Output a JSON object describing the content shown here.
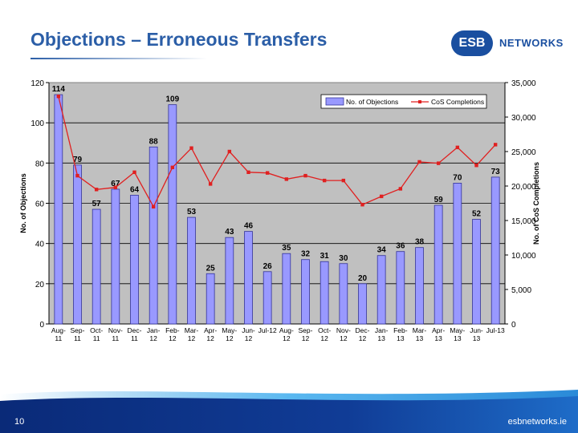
{
  "slide": {
    "title": "Objections – Erroneous Transfers",
    "page_number": "10",
    "footer_site": "esbnetworks.ie",
    "logo_badge": "ESB",
    "logo_text": "NETWORKS"
  },
  "colors": {
    "title": "#2b5ea7",
    "plot_bg": "#c0c0c0",
    "bar_fill": "#9999ff",
    "bar_stroke": "#333399",
    "line": "#e02020",
    "footer_dark": "#0a2a78",
    "footer_light": "#2a8ad8"
  },
  "chart_data": {
    "type": "bar",
    "categories": [
      "Aug-11",
      "Sep-11",
      "Oct-11",
      "Nov-11",
      "Dec-11",
      "Jan-12",
      "Feb-12",
      "Mar-12",
      "Apr-12",
      "May-12",
      "Jun-12",
      "Jul-12",
      "Aug-12",
      "Sep-12",
      "Oct-12",
      "Nov-12",
      "Dec-12",
      "Jan-13",
      "Feb-13",
      "Mar-13",
      "Apr-13",
      "May-13",
      "Jun-13",
      "Jul-13"
    ],
    "category_lines": [
      [
        "Aug-",
        "11"
      ],
      [
        "Sep-",
        "11"
      ],
      [
        "Oct-",
        "11"
      ],
      [
        "Nov-",
        "11"
      ],
      [
        "Dec-",
        "11"
      ],
      [
        "Jan-",
        "12"
      ],
      [
        "Feb-",
        "12"
      ],
      [
        "Mar-",
        "12"
      ],
      [
        "Apr-",
        "12"
      ],
      [
        "May-",
        "12"
      ],
      [
        "Jun-",
        "12"
      ],
      [
        "Jul-12",
        ""
      ],
      [
        "Aug-",
        "12"
      ],
      [
        "Sep-",
        "12"
      ],
      [
        "Oct-",
        "12"
      ],
      [
        "Nov-",
        "12"
      ],
      [
        "Dec-",
        "12"
      ],
      [
        "Jan-",
        "13"
      ],
      [
        "Feb-",
        "13"
      ],
      [
        "Mar-",
        "13"
      ],
      [
        "Apr-",
        "13"
      ],
      [
        "May-",
        "13"
      ],
      [
        "Jun-",
        "13"
      ],
      [
        "Jul-13",
        ""
      ]
    ],
    "series": [
      {
        "name": "No. of Objections",
        "type": "bar",
        "axis": "left",
        "values": [
          114,
          79,
          57,
          67,
          64,
          88,
          109,
          53,
          25,
          43,
          46,
          26,
          35,
          32,
          31,
          30,
          20,
          34,
          36,
          38,
          59,
          70,
          52,
          73
        ],
        "labels": [
          "114",
          "79",
          "57",
          "67",
          "64",
          "88",
          "109",
          "53",
          "25",
          "43",
          "46",
          "26",
          "35",
          "32",
          "31",
          "30",
          "20",
          "34",
          "36",
          "38",
          "59",
          "70",
          "52",
          "73"
        ]
      },
      {
        "name": "CoS Completions",
        "type": "line",
        "axis": "right",
        "values": [
          33000,
          21500,
          19500,
          19800,
          22000,
          17000,
          22700,
          25500,
          20300,
          25000,
          22000,
          21900,
          21000,
          21500,
          20800,
          20800,
          17300,
          18500,
          19600,
          23500,
          23300,
          25600,
          23000,
          26000
        ]
      }
    ],
    "ylabel": "No. of Objections",
    "y2label": "No. of CoS Completions",
    "ylim": [
      0,
      120
    ],
    "y2lim": [
      0,
      35000
    ],
    "yticks": [
      "0",
      "20",
      "40",
      "60",
      "80",
      "100",
      "120"
    ],
    "y2ticks": [
      "0",
      "5,000",
      "10,000",
      "15,000",
      "20,000",
      "25,000",
      "30,000",
      "35,000"
    ],
    "grid": true,
    "legend": "top-right"
  }
}
